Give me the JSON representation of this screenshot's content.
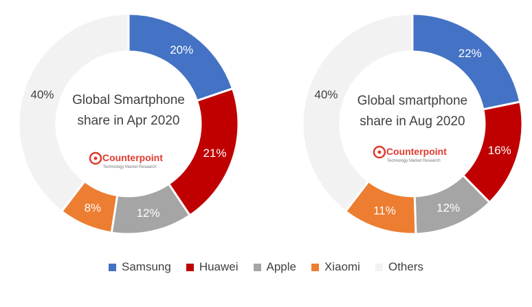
{
  "chart_data": [
    {
      "type": "pie",
      "variant": "donut",
      "title_lines": [
        "Global Smartphone",
        "share in Apr 2020"
      ],
      "categories": [
        "Samsung",
        "Huawei",
        "Apple",
        "Xiaomi",
        "Others"
      ],
      "values": [
        20,
        21,
        12,
        8,
        40
      ],
      "labels": [
        "20%",
        "21%",
        "12%",
        "8%",
        "40%"
      ],
      "logo": {
        "name": "Counterpoint",
        "tagline": "Technology Market Research"
      }
    },
    {
      "type": "pie",
      "variant": "donut",
      "title_lines": [
        "Global smartphone",
        "share in Aug 2020"
      ],
      "categories": [
        "Samsung",
        "Huawei",
        "Apple",
        "Xiaomi",
        "Others"
      ],
      "values": [
        22,
        16,
        12,
        11,
        40
      ],
      "labels": [
        "22%",
        "16%",
        "12%",
        "11%",
        "40%"
      ],
      "logo": {
        "name": "Counterpoint",
        "tagline": "Technology Market Research"
      }
    }
  ],
  "legend": {
    "position": "bottom",
    "items": [
      {
        "label": "Samsung",
        "color": "#4472C4"
      },
      {
        "label": "Huawei",
        "color": "#C00000"
      },
      {
        "label": "Apple",
        "color": "#A5A5A5"
      },
      {
        "label": "Xiaomi",
        "color": "#ED7D31"
      },
      {
        "label": "Others",
        "color": "#F2F2F2"
      }
    ]
  },
  "colors": {
    "Samsung": "#4472C4",
    "Huawei": "#C00000",
    "Apple": "#A5A5A5",
    "Xiaomi": "#ED7D31",
    "Others": "#F2F2F2",
    "logo": "#E03A2E"
  }
}
